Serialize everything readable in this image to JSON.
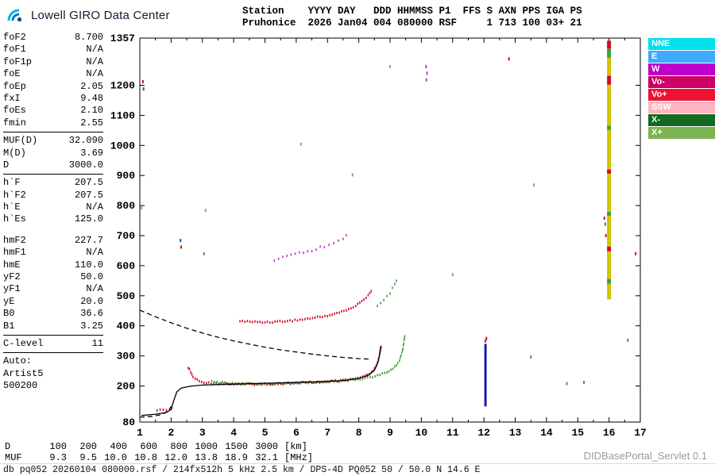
{
  "header": {
    "logo_text": "Lowell GIRO Data Center",
    "station_line1": "Station    YYYY DAY   DDD HHMMSS P1  FFS S AXN PPS IGA PS",
    "station_line2": "Pruhonice  2026 Jan04 004 080000 RSF     1 713 100 03+ 21"
  },
  "params": {
    "groups": [
      {
        "divider_after": true,
        "rows": [
          [
            "foF2",
            "8.700"
          ],
          [
            "foF1",
            "N/A"
          ],
          [
            "foF1p",
            "N/A"
          ],
          [
            "foE",
            "N/A"
          ],
          [
            "foEp",
            "2.05"
          ],
          [
            "fxI",
            "9.48"
          ],
          [
            "foEs",
            "2.10"
          ],
          [
            "fmin",
            "2.55"
          ]
        ]
      },
      {
        "divider_after": true,
        "rows": [
          [
            "MUF(D)",
            "32.090"
          ],
          [
            "M(D)",
            "3.69"
          ],
          [
            "D",
            "3000.0"
          ]
        ]
      },
      {
        "gap_after": true,
        "rows": [
          [
            "h`F",
            "207.5"
          ],
          [
            "h`F2",
            "207.5"
          ],
          [
            "h`E",
            "N/A"
          ],
          [
            "h`Es",
            "125.0"
          ]
        ]
      },
      {
        "divider_after": true,
        "rows": [
          [
            "hmF2",
            "227.7"
          ],
          [
            "hmF1",
            "N/A"
          ],
          [
            "hmE",
            "110.0"
          ],
          [
            "yF2",
            "50.0"
          ],
          [
            "yF1",
            "N/A"
          ],
          [
            "yE",
            "20.0"
          ],
          [
            "B0",
            "36.6"
          ],
          [
            "B1",
            "3.25"
          ]
        ]
      },
      {
        "divider_after": true,
        "rows": [
          [
            "C-level",
            "11"
          ]
        ]
      },
      {
        "rows": [
          [
            "Auto:",
            ""
          ],
          [
            "Artist5",
            ""
          ],
          [
            "500200",
            ""
          ]
        ]
      }
    ]
  },
  "legend": [
    {
      "label": "NNE",
      "color": "#00e0ee"
    },
    {
      "label": "E",
      "color": "#3fa8ff"
    },
    {
      "label": "W",
      "color": "#bf00cc"
    },
    {
      "label": "Vo-",
      "color": "#cc0066"
    },
    {
      "label": "Vo+",
      "color": "#ee1133"
    },
    {
      "label": "SSW",
      "color": "#ffb3c0"
    },
    {
      "label": "X-",
      "color": "#12691f"
    },
    {
      "label": "X+",
      "color": "#7cb352"
    }
  ],
  "chart_data": {
    "type": "scatter",
    "title": "",
    "xlabel": "[MHz]",
    "ylabel": "[km]",
    "xlim": [
      1,
      17
    ],
    "ylim": [
      80,
      1357
    ],
    "x_ticks": [
      1,
      2,
      3,
      4,
      5,
      6,
      7,
      8,
      9,
      10,
      11,
      12,
      13,
      14,
      15,
      16,
      17
    ],
    "y_ticks": [
      80,
      200,
      300,
      400,
      500,
      600,
      700,
      800,
      900,
      1000,
      1100,
      1200,
      1357
    ],
    "grid": false,
    "legend_position": "right",
    "series": [
      {
        "name": "f2-o-trace",
        "type": "dots",
        "color": "#d40a2e",
        "points": [
          [
            2.55,
            262
          ],
          [
            2.7,
            230
          ],
          [
            2.9,
            215
          ],
          [
            3.2,
            210
          ],
          [
            3.6,
            208
          ],
          [
            4.0,
            206
          ],
          [
            4.5,
            206
          ],
          [
            5.0,
            207
          ],
          [
            5.5,
            208
          ],
          [
            6.0,
            210
          ],
          [
            6.5,
            212
          ],
          [
            7.0,
            214
          ],
          [
            7.5,
            218
          ],
          [
            7.9,
            224
          ],
          [
            8.2,
            232
          ],
          [
            8.4,
            244
          ],
          [
            8.55,
            264
          ],
          [
            8.65,
            294
          ],
          [
            8.7,
            335
          ]
        ]
      },
      {
        "name": "f2-x-trace",
        "type": "dots",
        "color": "#3f9e3f",
        "points": [
          [
            3.3,
            214
          ],
          [
            3.8,
            209
          ],
          [
            4.3,
            207
          ],
          [
            4.8,
            206
          ],
          [
            5.3,
            207
          ],
          [
            5.8,
            209
          ],
          [
            6.3,
            211
          ],
          [
            6.8,
            213
          ],
          [
            7.3,
            216
          ],
          [
            7.8,
            220
          ],
          [
            8.2,
            226
          ],
          [
            8.6,
            234
          ],
          [
            8.9,
            246
          ],
          [
            9.15,
            262
          ],
          [
            9.3,
            286
          ],
          [
            9.4,
            318
          ],
          [
            9.45,
            352
          ],
          [
            9.48,
            374
          ]
        ]
      },
      {
        "name": "second-hop-o",
        "type": "dots",
        "color": "#d40a2e",
        "points": [
          [
            4.2,
            416
          ],
          [
            4.6,
            413
          ],
          [
            5.0,
            412
          ],
          [
            5.4,
            414
          ],
          [
            5.8,
            417
          ],
          [
            6.2,
            421
          ],
          [
            6.6,
            427
          ],
          [
            7.0,
            434
          ],
          [
            7.3,
            442
          ],
          [
            7.6,
            452
          ],
          [
            7.9,
            466
          ],
          [
            8.1,
            482
          ],
          [
            8.3,
            502
          ],
          [
            8.45,
            524
          ]
        ]
      },
      {
        "name": "second-hop-x",
        "type": "dots",
        "color": "#3f9e3f",
        "step": 5,
        "points": [
          [
            8.6,
            468
          ],
          [
            8.8,
            486
          ],
          [
            9.0,
            510
          ],
          [
            9.15,
            538
          ],
          [
            9.25,
            566
          ]
        ]
      },
      {
        "name": "multi-hop",
        "type": "dots",
        "color": "#c03ac0",
        "step": 6,
        "jitter": 2,
        "points": [
          [
            5.3,
            620
          ],
          [
            5.7,
            630
          ],
          [
            6.1,
            641
          ],
          [
            6.5,
            652
          ],
          [
            6.9,
            664
          ],
          [
            7.2,
            676
          ],
          [
            7.5,
            690
          ],
          [
            7.7,
            702
          ]
        ]
      },
      {
        "name": "es-trace",
        "type": "dots",
        "color": "#d40a2e",
        "points": [
          [
            1.55,
            120
          ],
          [
            1.75,
            121
          ],
          [
            1.95,
            123
          ],
          [
            2.08,
            126
          ]
        ]
      },
      {
        "name": "true-height-profile",
        "type": "line",
        "color": "#000000",
        "points": [
          [
            1.05,
            102
          ],
          [
            1.5,
            106
          ],
          [
            1.85,
            112
          ],
          [
            2.0,
            122
          ],
          [
            2.08,
            150
          ],
          [
            2.18,
            180
          ],
          [
            2.32,
            193
          ],
          [
            2.6,
            199
          ],
          [
            3.0,
            203
          ],
          [
            4.0,
            206
          ],
          [
            5.0,
            209
          ],
          [
            6.0,
            212
          ],
          [
            7.0,
            215
          ],
          [
            7.6,
            219
          ],
          [
            8.0,
            225
          ],
          [
            8.3,
            235
          ],
          [
            8.5,
            252
          ],
          [
            8.62,
            280
          ],
          [
            8.68,
            310
          ],
          [
            8.72,
            334
          ]
        ]
      },
      {
        "name": "muf-curve",
        "type": "dashline",
        "color": "#000000",
        "points": [
          [
            1.0,
            452
          ],
          [
            1.5,
            430
          ],
          [
            2.0,
            410
          ],
          [
            2.5,
            392
          ],
          [
            3.0,
            376
          ],
          [
            3.5,
            362
          ],
          [
            4.0,
            350
          ],
          [
            4.5,
            339
          ],
          [
            5.0,
            329
          ],
          [
            5.5,
            320
          ],
          [
            6.0,
            313
          ],
          [
            6.5,
            306
          ],
          [
            7.0,
            300
          ],
          [
            7.5,
            295
          ],
          [
            8.0,
            291
          ],
          [
            8.4,
            289
          ]
        ]
      },
      {
        "name": "profile-extrapolation",
        "type": "dashline",
        "color": "#000000",
        "points": [
          [
            1.0,
            96
          ],
          [
            1.4,
            99
          ],
          [
            1.7,
            105
          ],
          [
            1.9,
            116
          ],
          [
            2.0,
            132
          ]
        ]
      },
      {
        "name": "rfi-12mhz",
        "type": "vband",
        "x": 12.05,
        "width": 3,
        "segments": [
          {
            "from": 132,
            "to": 340,
            "color": "#1a1aaa"
          }
        ]
      },
      {
        "name": "rfi-16mhz",
        "type": "vband",
        "x": 16.0,
        "width": 5,
        "segments": [
          {
            "from": 488,
            "to": 540,
            "color": "#d2c400"
          },
          {
            "from": 540,
            "to": 556,
            "color": "#3f9e3f"
          },
          {
            "from": 556,
            "to": 648,
            "color": "#d2c400"
          },
          {
            "from": 648,
            "to": 664,
            "color": "#d40a2e"
          },
          {
            "from": 664,
            "to": 766,
            "color": "#d2c400"
          },
          {
            "from": 766,
            "to": 780,
            "color": "#3f9e3f"
          },
          {
            "from": 780,
            "to": 906,
            "color": "#d2c400"
          },
          {
            "from": 906,
            "to": 920,
            "color": "#d40a2e"
          },
          {
            "from": 920,
            "to": 1052,
            "color": "#d2c400"
          },
          {
            "from": 1052,
            "to": 1066,
            "color": "#3f9e3f"
          },
          {
            "from": 1066,
            "to": 1202,
            "color": "#d2c400"
          },
          {
            "from": 1202,
            "to": 1232,
            "color": "#d40a2e"
          },
          {
            "from": 1232,
            "to": 1292,
            "color": "#d2c400"
          },
          {
            "from": 1292,
            "to": 1322,
            "color": "#3f9e3f"
          },
          {
            "from": 1322,
            "to": 1348,
            "color": "#d40a2e"
          }
        ]
      },
      {
        "name": "noise",
        "type": "points",
        "points": [
          [
            1.1,
            1212,
            "#d40a2e"
          ],
          [
            1.12,
            1188,
            "#2244cc"
          ],
          [
            1.05,
            792,
            "#999999"
          ],
          [
            2.3,
            684,
            "#2244cc"
          ],
          [
            2.32,
            662,
            "#d40a2e"
          ],
          [
            3.05,
            640,
            "#3f9e3f"
          ],
          [
            3.1,
            784,
            "#999999"
          ],
          [
            6.15,
            1004,
            "#999999"
          ],
          [
            7.8,
            902,
            "#999999"
          ],
          [
            9.0,
            1262,
            "#999999"
          ],
          [
            10.15,
            1262,
            "#c03ac0"
          ],
          [
            10.18,
            1240,
            "#c03ac0"
          ],
          [
            10.16,
            1218,
            "#c03ac0"
          ],
          [
            11.0,
            570,
            "#999999"
          ],
          [
            12.05,
            350,
            "#d40a2e"
          ],
          [
            12.08,
            358,
            "#d40a2e"
          ],
          [
            12.8,
            1288,
            "#d40a2e"
          ],
          [
            13.5,
            296,
            "#777777"
          ],
          [
            13.6,
            868,
            "#999999"
          ],
          [
            14.65,
            208,
            "#777777"
          ],
          [
            15.2,
            212,
            "#777777"
          ],
          [
            15.85,
            758,
            "#d40a2e"
          ],
          [
            15.88,
            738,
            "#2e8b2e"
          ],
          [
            15.9,
            700,
            "#d40a2e"
          ],
          [
            16.85,
            640,
            "#d40a2e"
          ],
          [
            16.6,
            352,
            "#777777"
          ]
        ]
      }
    ]
  },
  "dmuf": {
    "rows": [
      {
        "label": "D",
        "values": [
          "100",
          "200",
          "400",
          "600",
          "800",
          "1000",
          "1500",
          "3000"
        ],
        "unit": "[km]"
      },
      {
        "label": "MUF",
        "values": [
          "9.3",
          "9.5",
          "10.0",
          "10.8",
          "12.0",
          "13.8",
          "18.9",
          "32.1"
        ],
        "unit": "[MHz]"
      }
    ]
  },
  "footer": {
    "servlet": "DIDBasePortal_Servlet 0.1",
    "status": "db pq052 20260104 080000.rsf / 214fx512h 5 kHz 2.5 km / DPS-4D PQ052 50 / 50.0 N 14.6 E"
  }
}
